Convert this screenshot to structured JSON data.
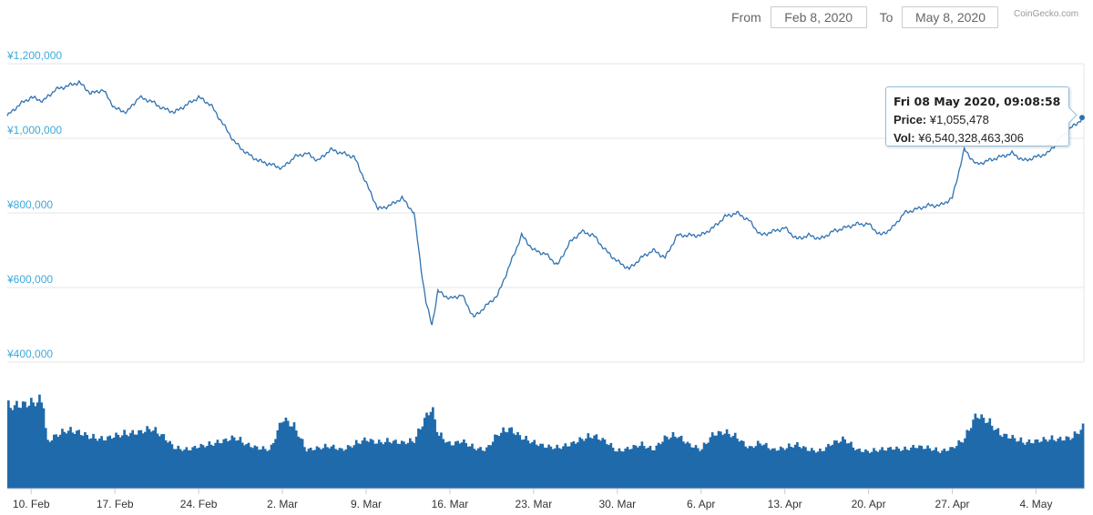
{
  "range": {
    "from_label": "From",
    "from_value": "Feb 8, 2020",
    "to_label": "To",
    "to_value": "May 8, 2020"
  },
  "credit": "CoinGecko.com",
  "tooltip": {
    "title": "Fri 08 May 2020, 09:08:58",
    "price_label": "Price:",
    "price_value": "¥1,055,478",
    "vol_label": "Vol:",
    "vol_value": "¥6,540,328,463,306"
  },
  "colors": {
    "line": "#2f73b1",
    "volume": "#1f6aab",
    "axis_label": "#3fa9d9",
    "grid": "#e6e6e6"
  },
  "chart_data": {
    "type": "line",
    "title": "",
    "xlabel": "",
    "ylabel": "",
    "ylim": [
      400000,
      1200000
    ],
    "y_ticks": [
      "¥1,200,000",
      "¥1,000,000",
      "¥800,000",
      "¥600,000",
      "¥400,000"
    ],
    "y_tick_values": [
      1200000,
      1000000,
      800000,
      600000,
      400000
    ],
    "x_ticks": [
      "10. Feb",
      "17. Feb",
      "24. Feb",
      "2. Mar",
      "9. Mar",
      "16. Mar",
      "23. Mar",
      "30. Mar",
      "6. Apr",
      "13. Apr",
      "20. Apr",
      "27. Apr",
      "4. May"
    ],
    "x_tick_days": [
      2,
      9,
      16,
      23,
      30,
      37,
      44,
      51,
      58,
      65,
      72,
      79,
      86
    ],
    "x_range_days": [
      0,
      90
    ],
    "grid": true,
    "series": [
      {
        "type": "line",
        "x_days": [
          0,
          1,
          2,
          3,
          4,
          5,
          6,
          7,
          8,
          9,
          10,
          11,
          12,
          13,
          14,
          15,
          16,
          17,
          18,
          19,
          20,
          21,
          22,
          23,
          24,
          25,
          26,
          27,
          28,
          29,
          30,
          31,
          32,
          33,
          34,
          34.6,
          35,
          35.5,
          36,
          37,
          38,
          39,
          40,
          41,
          42,
          43,
          44,
          45,
          46,
          47,
          48,
          49,
          50,
          51,
          52,
          53,
          54,
          55,
          56,
          57,
          58,
          59,
          60,
          61,
          62,
          63,
          64,
          65,
          66,
          67,
          68,
          69,
          70,
          71,
          72,
          73,
          74,
          75,
          76,
          77,
          78,
          79,
          80,
          81,
          82,
          83,
          84,
          85,
          86,
          87,
          88,
          89,
          90
        ],
        "values": [
          1060000,
          1090000,
          1110000,
          1100000,
          1130000,
          1140000,
          1150000,
          1120000,
          1130000,
          1080000,
          1070000,
          1110000,
          1100000,
          1080000,
          1070000,
          1090000,
          1110000,
          1090000,
          1040000,
          990000,
          960000,
          940000,
          930000,
          920000,
          950000,
          960000,
          940000,
          970000,
          960000,
          950000,
          880000,
          810000,
          820000,
          840000,
          800000,
          650000,
          560000,
          500000,
          590000,
          570000,
          580000,
          520000,
          550000,
          580000,
          660000,
          740000,
          700000,
          690000,
          660000,
          720000,
          750000,
          740000,
          700000,
          670000,
          650000,
          680000,
          700000,
          680000,
          740000,
          740000,
          740000,
          760000,
          790000,
          800000,
          780000,
          740000,
          750000,
          760000,
          730000,
          740000,
          730000,
          750000,
          760000,
          770000,
          770000,
          740000,
          760000,
          800000,
          810000,
          820000,
          820000,
          840000,
          970000,
          930000,
          940000,
          950000,
          960000,
          940000,
          950000,
          960000,
          1000000,
          1030000,
          1055478
        ]
      },
      {
        "type": "bar",
        "role": "volume",
        "x_days": [
          0,
          1,
          2,
          3,
          3.3,
          4,
          5,
          6,
          7,
          8,
          9,
          10,
          11,
          12,
          13,
          14,
          15,
          16,
          17,
          18,
          19,
          20,
          21,
          22,
          23,
          24,
          25,
          26,
          27,
          28,
          29,
          30,
          31,
          32,
          33,
          34,
          35,
          35.5,
          36,
          37,
          38,
          39,
          40,
          41,
          42,
          43,
          44,
          45,
          46,
          47,
          48,
          49,
          50,
          51,
          52,
          53,
          54,
          55,
          56,
          57,
          58,
          59,
          60,
          61,
          62,
          63,
          64,
          65,
          66,
          67,
          68,
          69,
          70,
          71,
          72,
          73,
          74,
          75,
          76,
          77,
          78,
          79,
          80,
          81,
          82,
          83,
          84,
          85,
          86,
          87,
          88,
          89,
          90
        ],
        "values": [
          0.92,
          0.95,
          0.97,
          1.0,
          0.52,
          0.6,
          0.66,
          0.64,
          0.58,
          0.56,
          0.6,
          0.62,
          0.64,
          0.68,
          0.6,
          0.46,
          0.44,
          0.48,
          0.5,
          0.54,
          0.58,
          0.5,
          0.46,
          0.44,
          0.8,
          0.7,
          0.44,
          0.46,
          0.48,
          0.44,
          0.5,
          0.56,
          0.52,
          0.54,
          0.52,
          0.54,
          0.82,
          0.92,
          0.62,
          0.5,
          0.54,
          0.46,
          0.44,
          0.62,
          0.68,
          0.58,
          0.52,
          0.48,
          0.46,
          0.5,
          0.56,
          0.6,
          0.54,
          0.42,
          0.46,
          0.5,
          0.44,
          0.58,
          0.6,
          0.5,
          0.44,
          0.62,
          0.64,
          0.58,
          0.46,
          0.52,
          0.44,
          0.46,
          0.5,
          0.44,
          0.42,
          0.52,
          0.56,
          0.44,
          0.42,
          0.44,
          0.46,
          0.44,
          0.48,
          0.46,
          0.42,
          0.46,
          0.56,
          0.84,
          0.76,
          0.62,
          0.58,
          0.52,
          0.54,
          0.56,
          0.56,
          0.58,
          0.7
        ]
      }
    ]
  }
}
